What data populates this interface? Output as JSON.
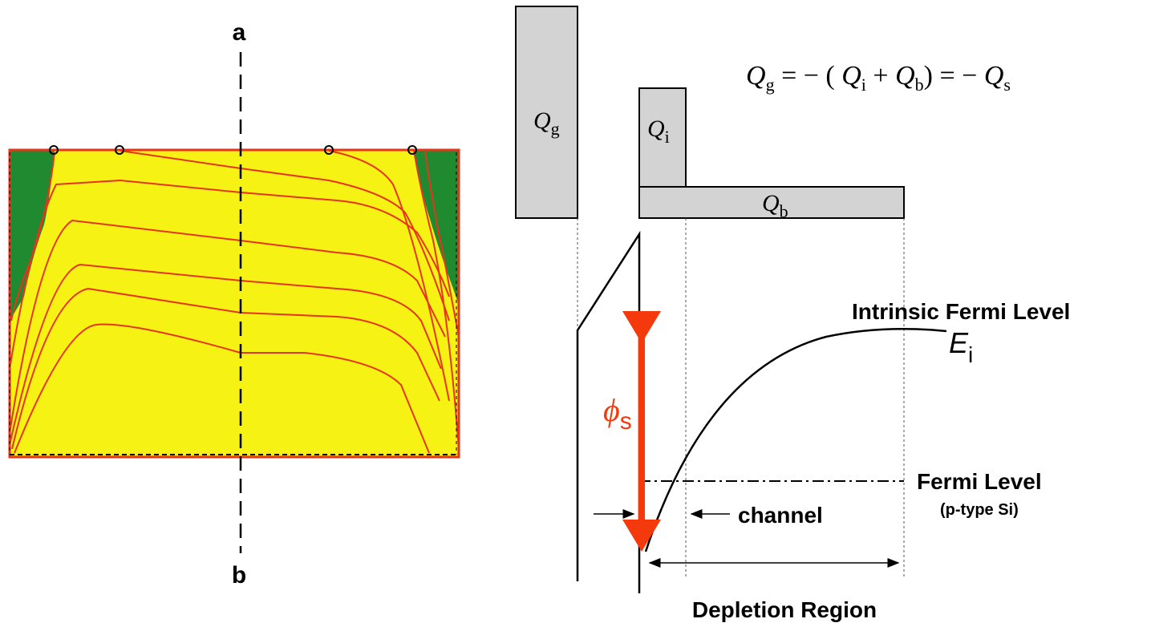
{
  "left_panel": {
    "top_label": "a",
    "bottom_label": "b"
  },
  "charges": {
    "gate": {
      "symbol": "Q",
      "sub": "g"
    },
    "inversion": {
      "symbol": "Q",
      "sub": "i"
    },
    "bulk": {
      "symbol": "Q",
      "sub": "b"
    },
    "equation": [
      "Q",
      "g",
      " = − ( ",
      "Q",
      "i",
      " + ",
      "Q",
      "b",
      ") = − ",
      "Q",
      "s"
    ]
  },
  "band_diagram": {
    "intrinsic_label": "Intrinsic Fermi Level",
    "intrinsic_symbol": {
      "symbol": "E",
      "sub": "i"
    },
    "surface_potential": {
      "symbol": "ϕ",
      "sub": "s"
    },
    "fermi_label": "Fermi Level",
    "fermi_note": "(p-type Si)",
    "channel_label": "channel",
    "depletion_label": "Depletion Region"
  }
}
